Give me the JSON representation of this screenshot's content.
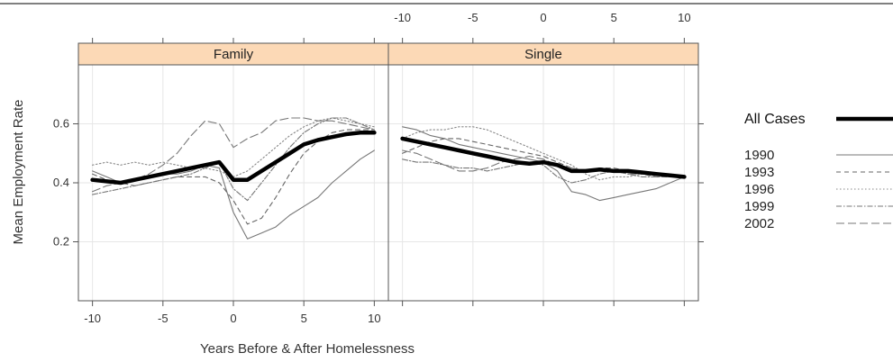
{
  "chart_data": {
    "type": "line",
    "xlabel": "Years Before & After Homelessness",
    "ylabel": "Mean Employment Rate",
    "xlim": [
      -11,
      11
    ],
    "ylim": [
      0.0,
      0.8
    ],
    "x_ticks": [
      -10,
      -5,
      0,
      5,
      10
    ],
    "y_ticks": [
      0.2,
      0.4,
      0.6
    ],
    "grid": true,
    "legend_position": "right",
    "x": [
      -10,
      -9,
      -8,
      -7,
      -6,
      -5,
      -4,
      -3,
      -2,
      -1,
      0,
      1,
      2,
      3,
      4,
      5,
      6,
      7,
      8,
      9,
      10
    ],
    "panels": [
      {
        "name": "Family",
        "series": [
          {
            "name": "All Cases",
            "values": [
              0.41,
              0.405,
              0.4,
              0.41,
              0.42,
              0.43,
              0.44,
              0.45,
              0.46,
              0.47,
              0.41,
              0.41,
              0.44,
              0.47,
              0.5,
              0.53,
              0.545,
              0.555,
              0.565,
              0.57,
              0.57
            ]
          },
          {
            "name": "1990",
            "values": [
              0.44,
              0.42,
              0.4,
              0.41,
              0.42,
              0.43,
              0.43,
              0.44,
              0.46,
              0.45,
              0.3,
              0.21,
              0.23,
              0.25,
              0.29,
              0.32,
              0.35,
              0.4,
              0.44,
              0.48,
              0.51
            ]
          },
          {
            "name": "1993",
            "values": [
              0.43,
              0.41,
              0.4,
              0.39,
              0.4,
              0.41,
              0.42,
              0.42,
              0.42,
              0.4,
              0.34,
              0.26,
              0.28,
              0.35,
              0.43,
              0.5,
              0.54,
              0.57,
              0.58,
              0.58,
              0.58
            ]
          },
          {
            "name": "1996",
            "values": [
              0.46,
              0.47,
              0.46,
              0.47,
              0.46,
              0.47,
              0.46,
              0.45,
              0.45,
              0.44,
              0.42,
              0.44,
              0.48,
              0.52,
              0.56,
              0.59,
              0.61,
              0.62,
              0.61,
              0.6,
              0.59
            ]
          },
          {
            "name": "1999",
            "values": [
              0.36,
              0.37,
              0.38,
              0.39,
              0.4,
              0.41,
              0.42,
              0.43,
              0.45,
              0.47,
              0.38,
              0.34,
              0.4,
              0.46,
              0.52,
              0.57,
              0.6,
              0.62,
              0.62,
              0.6,
              0.58
            ]
          },
          {
            "name": "2002",
            "values": [
              0.37,
              0.39,
              0.4,
              0.41,
              0.43,
              0.46,
              0.5,
              0.56,
              0.61,
              0.6,
              0.52,
              0.55,
              0.57,
              0.61,
              0.62,
              0.62,
              0.61,
              0.61,
              0.6,
              0.59,
              0.58
            ]
          }
        ]
      },
      {
        "name": "Single",
        "series": [
          {
            "name": "All Cases",
            "values": [
              0.55,
              0.54,
              0.53,
              0.52,
              0.51,
              0.5,
              0.49,
              0.48,
              0.47,
              0.465,
              0.47,
              0.46,
              0.44,
              0.44,
              0.445,
              0.44,
              0.44,
              0.435,
              0.43,
              0.425,
              0.42
            ]
          },
          {
            "name": "1990",
            "values": [
              0.59,
              0.58,
              0.56,
              0.55,
              0.53,
              0.52,
              0.51,
              0.5,
              0.49,
              0.48,
              0.47,
              0.44,
              0.37,
              0.36,
              0.34,
              0.35,
              0.36,
              0.37,
              0.38,
              0.4,
              0.42
            ]
          },
          {
            "name": "1993",
            "values": [
              0.5,
              0.52,
              0.54,
              0.55,
              0.55,
              0.54,
              0.53,
              0.52,
              0.51,
              0.5,
              0.49,
              0.47,
              0.45,
              0.44,
              0.45,
              0.45,
              0.44,
              0.43,
              0.42,
              0.42,
              0.42
            ]
          },
          {
            "name": "1996",
            "values": [
              0.55,
              0.57,
              0.58,
              0.58,
              0.59,
              0.59,
              0.58,
              0.56,
              0.54,
              0.52,
              0.5,
              0.48,
              0.46,
              0.43,
              0.41,
              0.42,
              0.42,
              0.43,
              0.43,
              0.42,
              0.42
            ]
          },
          {
            "name": "1999",
            "values": [
              0.48,
              0.47,
              0.47,
              0.46,
              0.45,
              0.45,
              0.44,
              0.45,
              0.46,
              0.47,
              0.46,
              0.42,
              0.4,
              0.41,
              0.43,
              0.44,
              0.43,
              0.42,
              0.42,
              0.42,
              0.42
            ]
          },
          {
            "name": "2002",
            "values": [
              0.51,
              0.5,
              0.48,
              0.46,
              0.44,
              0.44,
              0.45,
              0.47,
              0.48,
              0.49,
              0.48,
              0.46,
              0.45,
              0.44,
              0.44,
              0.44,
              0.43,
              0.43,
              0.43,
              0.42,
              0.42
            ]
          }
        ]
      }
    ]
  }
}
